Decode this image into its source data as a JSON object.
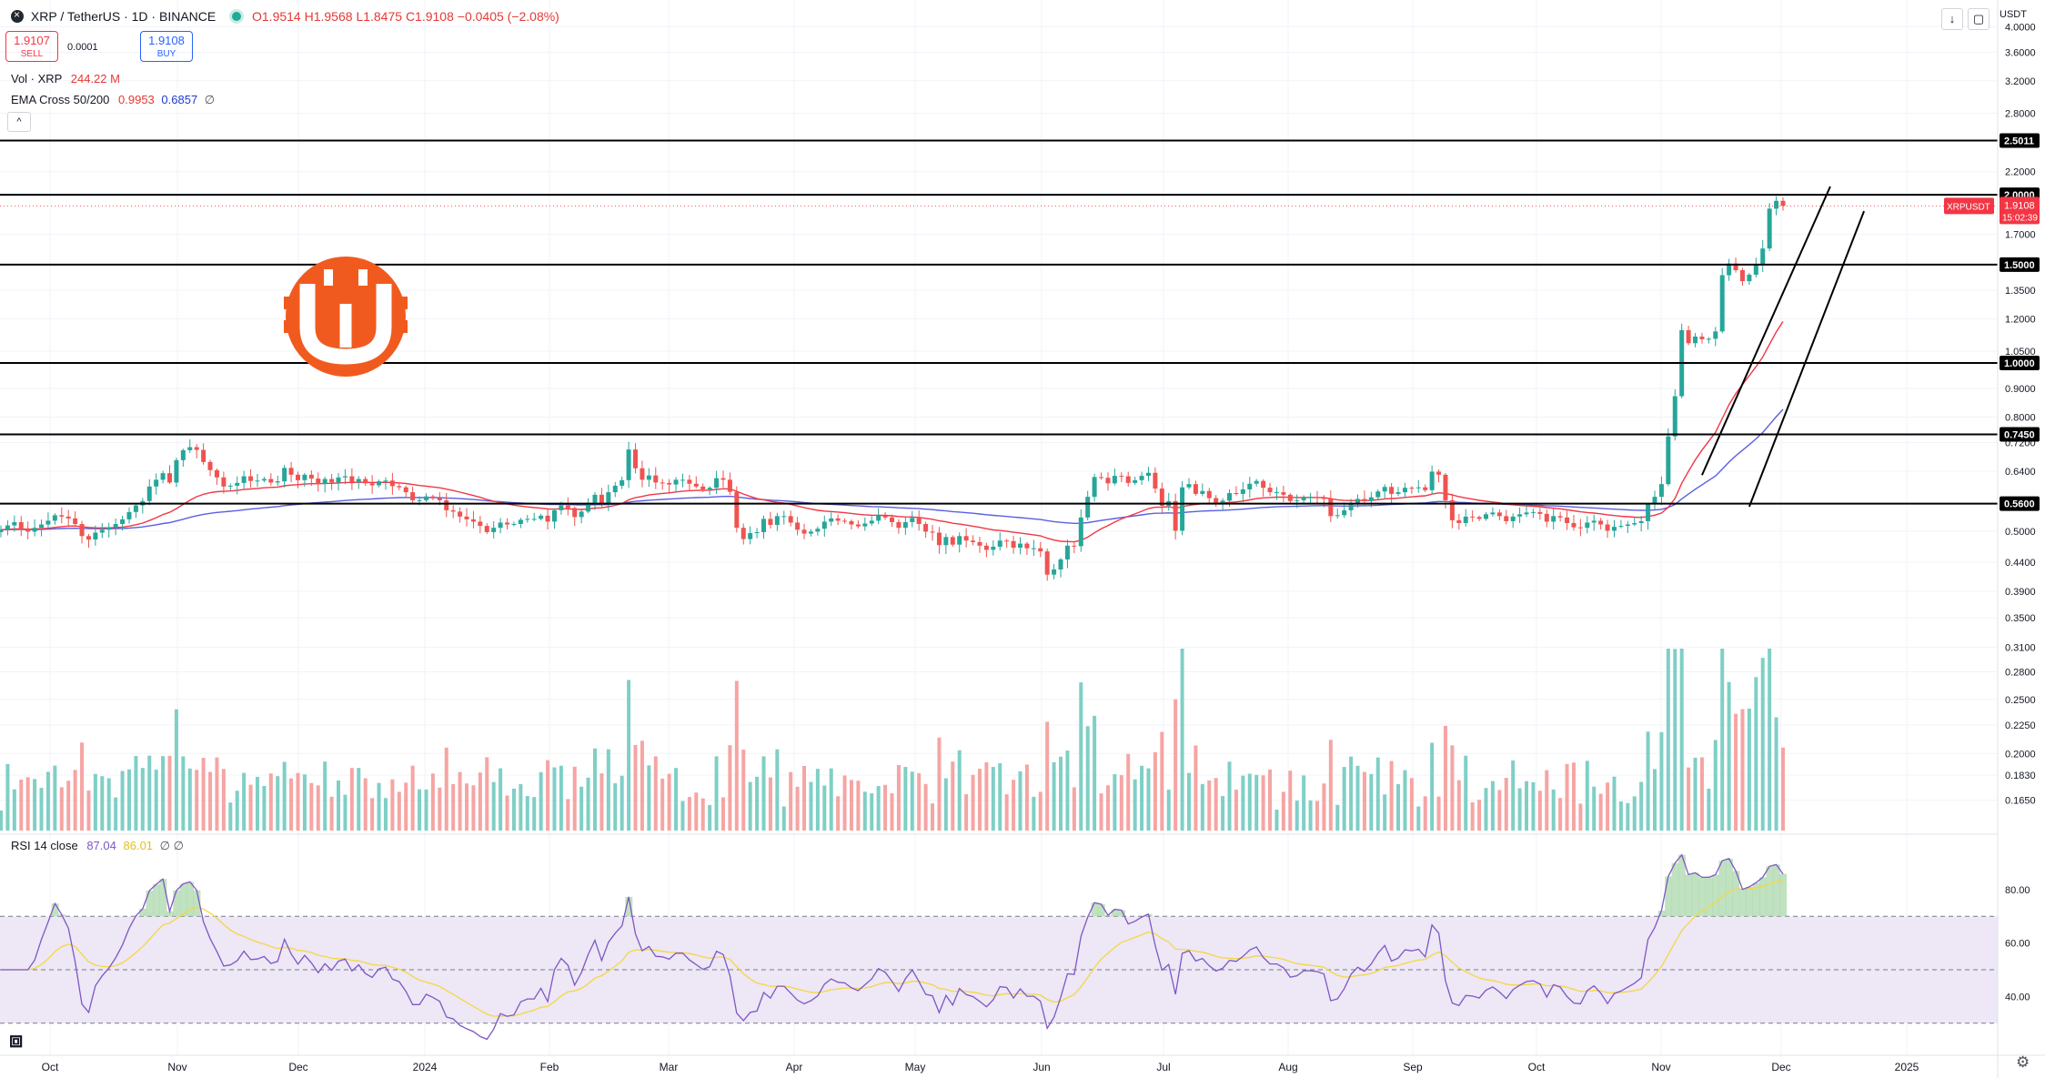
{
  "header": {
    "symbol": "XRP / TetherUS · 1D · BINANCE",
    "ohlc_o": "O1.9514",
    "ohlc_h": "H1.9568",
    "ohlc_l": "L1.8475",
    "ohlc_c": "C1.9108",
    "change": "−0.0405 (−2.08%)",
    "sell_price": "1.9107",
    "sell_label": "SELL",
    "buy_price": "1.9108",
    "buy_label": "BUY",
    "spread": "0.0001",
    "vol_label": "Vol · XRP",
    "vol_value": "244.22 M",
    "ema_label": "EMA Cross 50/200",
    "ema_fast": "0.9953",
    "ema_slow": "0.6857",
    "ema_suffix": "∅",
    "currency": "USDT"
  },
  "rsi_header": {
    "label": "RSI 14 close",
    "value": "87.04",
    "ma_value": "86.01",
    "suffix": "∅ ∅"
  },
  "colors": {
    "up": "#26a69a",
    "down": "#ef5350",
    "ema_fast": "#f23645",
    "ema_slow": "#5b5fe0",
    "rsi": "#7e57c2",
    "rsi_ma": "#f5d742",
    "rsi_band": "#ede7f6"
  },
  "chart_data": {
    "type": "candlestick",
    "symbol": "XRPUSDT",
    "interval": "1D",
    "y_axis_scale": "log",
    "y_range": [
      0.15,
      4.3
    ],
    "y_ticks": [
      4.0,
      3.6,
      3.2,
      2.8,
      2.2,
      2.0,
      1.7,
      1.5,
      1.35,
      1.2,
      1.05,
      0.9,
      0.8,
      0.72,
      0.64,
      0.56,
      0.5,
      0.44,
      0.39,
      0.35,
      0.31,
      0.28,
      0.25,
      0.225,
      0.2,
      0.183,
      0.165
    ],
    "y_tick_labels": [
      "4.0000",
      "3.6000",
      "3.2000",
      "2.8000",
      "2.2000",
      "",
      "1.7000",
      "",
      "1.3500",
      "1.2000",
      "1.0500",
      "0.9000",
      "0.8000",
      "0.7200",
      "0.6400",
      "",
      "0.5000",
      "0.4400",
      "0.3900",
      "0.3500",
      "0.3100",
      "0.2800",
      "0.2500",
      "0.2250",
      "0.2000",
      "0.1830",
      "0.1650"
    ],
    "x_labels": [
      "Oct",
      "Nov",
      "Dec",
      "2024",
      "Feb",
      "Mar",
      "Apr",
      "May",
      "Jun",
      "Jul",
      "Aug",
      "Sep",
      "Oct",
      "Nov",
      "Dec",
      "2025"
    ],
    "horizontal_levels": [
      {
        "price": 2.5011,
        "label": "2.5011"
      },
      {
        "price": 2.0,
        "label": "2.0000"
      },
      {
        "price": 1.5,
        "label": "1.5000"
      },
      {
        "price": 1.0,
        "label": "1.0000"
      },
      {
        "price": 0.745,
        "label": "0.7450"
      },
      {
        "price": 0.56,
        "label": "0.5600"
      }
    ],
    "last_price": {
      "symbol": "XRPUSDT",
      "value": "1.9108",
      "countdown": "15:02:39",
      "price": 1.9108
    },
    "closes": [
      0.503,
      0.512,
      0.519,
      0.504,
      0.499,
      0.507,
      0.514,
      0.522,
      0.534,
      0.531,
      0.527,
      0.515,
      0.49,
      0.483,
      0.497,
      0.503,
      0.508,
      0.515,
      0.525,
      0.541,
      0.556,
      0.566,
      0.601,
      0.618,
      0.635,
      0.611,
      0.67,
      0.698,
      0.707,
      0.699,
      0.665,
      0.643,
      0.624,
      0.601,
      0.603,
      0.61,
      0.627,
      0.615,
      0.616,
      0.62,
      0.611,
      0.614,
      0.649,
      0.631,
      0.617,
      0.631,
      0.621,
      0.607,
      0.62,
      0.611,
      0.624,
      0.627,
      0.612,
      0.62,
      0.609,
      0.604,
      0.614,
      0.616,
      0.602,
      0.599,
      0.587,
      0.568,
      0.568,
      0.577,
      0.573,
      0.568,
      0.545,
      0.542,
      0.531,
      0.525,
      0.52,
      0.511,
      0.498,
      0.507,
      0.518,
      0.514,
      0.515,
      0.524,
      0.526,
      0.526,
      0.533,
      0.52,
      0.545,
      0.556,
      0.55,
      0.53,
      0.542,
      0.562,
      0.581,
      0.56,
      0.587,
      0.603,
      0.617,
      0.7,
      0.648,
      0.618,
      0.629,
      0.611,
      0.61,
      0.606,
      0.618,
      0.618,
      0.608,
      0.601,
      0.594,
      0.598,
      0.622,
      0.618,
      0.588,
      0.507,
      0.484,
      0.496,
      0.498,
      0.526,
      0.513,
      0.532,
      0.532,
      0.518,
      0.503,
      0.495,
      0.499,
      0.505,
      0.52,
      0.527,
      0.522,
      0.521,
      0.514,
      0.51,
      0.516,
      0.522,
      0.533,
      0.529,
      0.519,
      0.507,
      0.519,
      0.528,
      0.515,
      0.499,
      0.497,
      0.472,
      0.488,
      0.473,
      0.49,
      0.481,
      0.478,
      0.471,
      0.463,
      0.469,
      0.481,
      0.48,
      0.467,
      0.475,
      0.466,
      0.466,
      0.46,
      0.418,
      0.427,
      0.445,
      0.471,
      0.47,
      0.529,
      0.576,
      0.625,
      0.623,
      0.609,
      0.628,
      0.627,
      0.61,
      0.617,
      0.628,
      0.636,
      0.596,
      0.555,
      0.566,
      0.501,
      0.599,
      0.607,
      0.583,
      0.59,
      0.573,
      0.561,
      0.567,
      0.585,
      0.583,
      0.594,
      0.608,
      0.615,
      0.598,
      0.587,
      0.587,
      0.581,
      0.566,
      0.568,
      0.575,
      0.575,
      0.574,
      0.571,
      0.532,
      0.534,
      0.545,
      0.562,
      0.571,
      0.566,
      0.575,
      0.589,
      0.6,
      0.583,
      0.587,
      0.598,
      0.597,
      0.599,
      0.592,
      0.639,
      0.631,
      0.568,
      0.523,
      0.517,
      0.531,
      0.53,
      0.526,
      0.536,
      0.54,
      0.532,
      0.521,
      0.531,
      0.536,
      0.54,
      0.541,
      0.537,
      0.52,
      0.532,
      0.529,
      0.517,
      0.508,
      0.507,
      0.518,
      0.522,
      0.514,
      0.501,
      0.509,
      0.511,
      0.514,
      0.517,
      0.521,
      0.559,
      0.576,
      0.607,
      0.739,
      0.872,
      1.145,
      1.085,
      1.115,
      1.103,
      1.105,
      1.139,
      1.436,
      1.507,
      1.466,
      1.401,
      1.439,
      1.504,
      1.603,
      1.889,
      1.951,
      1.911
    ],
    "ema_50_final": 0.9953,
    "ema_200_final": 0.6857,
    "rsi_final": 87.04,
    "rsi_ma_final": 86.01,
    "rsi_ticks": [
      80,
      60,
      40
    ],
    "rsi_bands": [
      70,
      50,
      30
    ],
    "trend_channel": {
      "upper": {
        "from_bar": 252,
        "from_price": 0.63,
        "to_bar": 271,
        "to_price": 2.07
      },
      "lower": {
        "from_bar": 259,
        "from_price": 0.553,
        "to_bar": 276,
        "to_price": 1.87
      }
    }
  }
}
